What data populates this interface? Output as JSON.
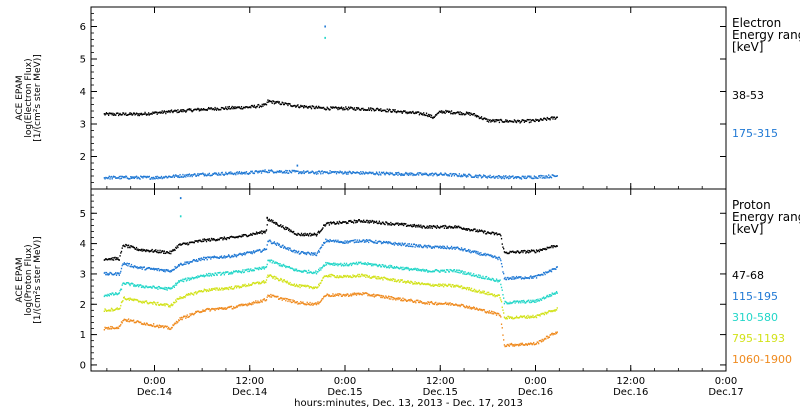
{
  "colors": {
    "black": "#000000",
    "blue": "#1f78d4",
    "cyan": "#22d6c8",
    "yellow": "#d2e21a",
    "orange": "#ef8a1e"
  },
  "chart_data": [
    {
      "type": "scatter",
      "panel": "electron",
      "ylabel_lines": [
        "ACE EPAM",
        "log(Electron Flux)",
        "[1/(cm²s ster MeV)]"
      ],
      "ylim": [
        1.0,
        6.6
      ],
      "yticks": [
        2,
        3,
        4,
        5,
        6
      ],
      "legend_title": [
        "Electron",
        "Energy ranges",
        "[keV]"
      ],
      "series": [
        {
          "name": "38-53",
          "color": "#000000",
          "x": [
            -6.4,
            -2,
            2,
            6,
            12,
            14,
            14.2,
            18,
            20.4,
            21.5,
            24,
            28,
            30,
            34.2,
            35,
            36,
            38,
            40,
            42,
            46,
            48,
            50.7
          ],
          "y": [
            3.3,
            3.3,
            3.38,
            3.45,
            3.52,
            3.58,
            3.7,
            3.55,
            3.5,
            3.48,
            3.48,
            3.45,
            3.4,
            3.3,
            3.2,
            3.38,
            3.35,
            3.3,
            3.1,
            3.08,
            3.1,
            3.2
          ]
        },
        {
          "name": "175-315",
          "color": "#1f78d4",
          "x": [
            -6.4,
            0,
            6,
            12,
            14,
            18,
            20.4,
            21.5,
            28,
            34,
            36,
            42,
            46,
            50.7
          ],
          "y": [
            1.35,
            1.35,
            1.45,
            1.5,
            1.55,
            1.52,
            1.5,
            1.52,
            1.48,
            1.45,
            1.45,
            1.38,
            1.35,
            1.4
          ]
        }
      ],
      "spikes": [
        {
          "x": 21.5,
          "y": 6.0,
          "color": "#1f78d4"
        },
        {
          "x": 21.5,
          "y": 5.65,
          "color": "#22d6c8"
        },
        {
          "x": 18.0,
          "y": 1.72,
          "color": "#1f78d4"
        }
      ]
    },
    {
      "type": "scatter",
      "panel": "proton",
      "ylabel_lines": [
        "ACE EPAM",
        "log(Proton Flux)",
        "[1/(cm²s ster MeV)]"
      ],
      "ylim": [
        -0.2,
        5.8
      ],
      "yticks": [
        0,
        1,
        2,
        3,
        4,
        5
      ],
      "legend_title": [
        "Proton",
        "Energy ranges",
        "[keV]"
      ],
      "series": [
        {
          "name": "47-68",
          "color": "#000000",
          "x": [
            -6.4,
            -4.5,
            -4,
            -2,
            2,
            3,
            6,
            10,
            14,
            14.2,
            18,
            20.4,
            21.5,
            24,
            26,
            34,
            38,
            42,
            43.5,
            44,
            48,
            50.7
          ],
          "y": [
            3.5,
            3.5,
            3.95,
            3.8,
            3.7,
            3.95,
            4.1,
            4.2,
            4.4,
            4.8,
            4.3,
            4.3,
            4.65,
            4.7,
            4.75,
            4.55,
            4.55,
            4.35,
            4.3,
            3.7,
            3.75,
            3.95
          ]
        },
        {
          "name": "115-195",
          "color": "#1f78d4",
          "x": [
            -6.4,
            -4.5,
            -4,
            -2,
            2,
            3,
            6,
            10,
            14,
            14.2,
            18,
            20.4,
            21.5,
            24,
            26,
            34,
            38,
            42,
            43.5,
            44,
            48,
            50.7
          ],
          "y": [
            3.0,
            3.0,
            3.35,
            3.2,
            3.1,
            3.3,
            3.5,
            3.6,
            3.8,
            4.1,
            3.7,
            3.65,
            4.1,
            4.05,
            4.1,
            3.9,
            3.85,
            3.6,
            3.5,
            2.85,
            2.9,
            3.2
          ]
        },
        {
          "name": "310-580",
          "color": "#22d6c8",
          "x": [
            -6.4,
            -4.5,
            -4,
            -2,
            2,
            3,
            6,
            10,
            14,
            14.2,
            18,
            20.4,
            21.5,
            24,
            26,
            34,
            38,
            42,
            43.5,
            44,
            48,
            50.7
          ],
          "y": [
            2.3,
            2.35,
            2.7,
            2.6,
            2.5,
            2.75,
            2.95,
            3.05,
            3.2,
            3.45,
            3.1,
            3.05,
            3.35,
            3.3,
            3.35,
            3.1,
            3.1,
            2.85,
            2.75,
            2.05,
            2.1,
            2.4
          ]
        },
        {
          "name": "795-1193",
          "color": "#d2e21a",
          "x": [
            -6.4,
            -4.5,
            -4,
            -2,
            2,
            3,
            6,
            10,
            14,
            14.2,
            18,
            20.4,
            21.5,
            24,
            26,
            34,
            38,
            42,
            43.5,
            44,
            48,
            50.7
          ],
          "y": [
            1.8,
            1.85,
            2.2,
            2.1,
            1.95,
            2.2,
            2.45,
            2.55,
            2.75,
            2.95,
            2.6,
            2.55,
            2.95,
            2.9,
            2.95,
            2.65,
            2.6,
            2.35,
            2.25,
            1.55,
            1.6,
            1.85
          ]
        },
        {
          "name": "1060-1900",
          "color": "#ef8a1e",
          "x": [
            -6.4,
            -4.5,
            -4,
            -2,
            2,
            3,
            6,
            10,
            14,
            14.2,
            18,
            20.4,
            21.5,
            24,
            26,
            34,
            38,
            42,
            43.5,
            44,
            48,
            50.7
          ],
          "y": [
            1.2,
            1.25,
            1.5,
            1.4,
            1.2,
            1.5,
            1.8,
            1.9,
            2.15,
            2.3,
            2.05,
            2.0,
            2.3,
            2.3,
            2.35,
            2.05,
            2.0,
            1.75,
            1.65,
            0.65,
            0.7,
            1.1
          ]
        }
      ],
      "spikes": [
        {
          "x": 3.3,
          "y": 5.5,
          "color": "#1f78d4"
        },
        {
          "x": 3.3,
          "y": 4.9,
          "color": "#22d6c8"
        },
        {
          "x": 14.2,
          "y": 4.85,
          "color": "#000000"
        }
      ]
    }
  ],
  "x_axis": {
    "xlim": [
      -8.0,
      72.0
    ],
    "ticks": [
      {
        "x": 0,
        "line1": "0:00",
        "line2": "Dec.14"
      },
      {
        "x": 12,
        "line1": "12:00",
        "line2": "Dec.14"
      },
      {
        "x": 24,
        "line1": "0:00",
        "line2": "Dec.15"
      },
      {
        "x": 36,
        "line1": "12:00",
        "line2": "Dec.15"
      },
      {
        "x": 48,
        "line1": "0:00",
        "line2": "Dec.16"
      },
      {
        "x": 60,
        "line1": "12:00",
        "line2": "Dec.16"
      },
      {
        "x": 72,
        "line1": "0:00",
        "line2": "Dec.17"
      }
    ],
    "label": "hours:minutes, Dec. 13, 2013 - Dec. 17, 2013"
  }
}
